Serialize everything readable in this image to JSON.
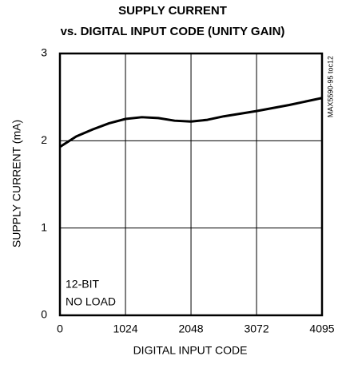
{
  "chart_data": {
    "type": "line",
    "title": [
      "SUPPLY CURRENT",
      "vs. DIGITAL INPUT CODE (UNITY GAIN)"
    ],
    "xlabel": "DIGITAL INPUT CODE",
    "ylabel": "SUPPLY CURRENT (mA)",
    "annotations": [
      "12-BIT",
      "NO LOAD"
    ],
    "side_note": "MAX5590-95 toc12",
    "x": [
      0,
      256,
      512,
      768,
      1024,
      1280,
      1536,
      1792,
      2048,
      2304,
      2560,
      3072,
      3584,
      4095
    ],
    "values": [
      1.93,
      2.05,
      2.13,
      2.2,
      2.25,
      2.27,
      2.26,
      2.23,
      2.22,
      2.24,
      2.28,
      2.34,
      2.41,
      2.49
    ],
    "color": "#000000",
    "xlim": [
      0,
      4095
    ],
    "xticks": [
      0,
      1024,
      2048,
      3072,
      4095
    ],
    "ylim": [
      0,
      3
    ],
    "yticks": [
      0,
      1,
      2,
      3
    ],
    "grid": true
  }
}
